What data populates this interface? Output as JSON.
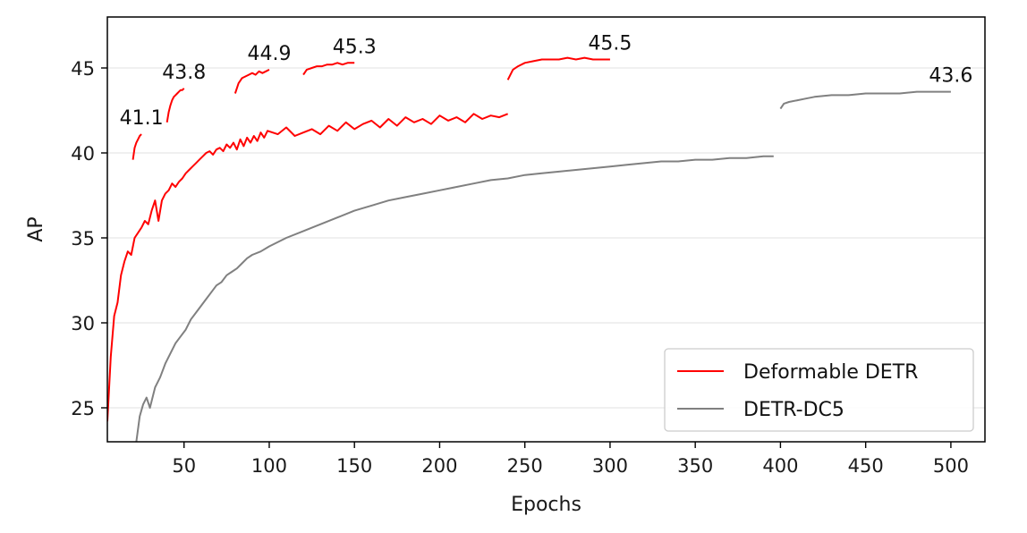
{
  "chart_data": {
    "type": "line",
    "xlabel": "Epochs",
    "ylabel": "AP",
    "xlim": [
      5,
      520
    ],
    "ylim": [
      23,
      48
    ],
    "xticks": [
      50,
      100,
      150,
      200,
      250,
      300,
      350,
      400,
      450,
      500
    ],
    "yticks": [
      25,
      30,
      35,
      40,
      45
    ],
    "grid": "horizontal",
    "legend_position": "bottom-right",
    "colors": {
      "Deformable DETR": "#ff0000",
      "DETR-DC5": "#808080"
    },
    "series": [
      {
        "name": "Deformable DETR",
        "segments": [
          {
            "x": [
              5,
              7,
              9,
              11,
              13,
              15,
              17,
              19,
              21,
              23,
              25,
              27,
              29,
              31,
              33,
              35,
              37,
              39,
              41,
              43,
              45,
              47,
              49,
              51,
              53,
              55,
              57,
              59,
              61,
              63,
              65,
              67,
              69,
              71,
              73,
              75,
              77,
              79,
              81,
              83,
              85,
              87,
              89,
              91,
              93,
              95,
              97,
              99,
              105,
              110,
              115,
              120,
              125,
              130,
              135,
              140,
              145,
              150,
              155,
              160,
              165,
              170,
              175,
              180,
              185,
              190,
              195,
              200,
              205,
              210,
              215,
              220,
              225,
              230,
              235,
              240
            ],
            "y": [
              24.2,
              28.0,
              30.4,
              31.2,
              32.8,
              33.6,
              34.2,
              34.0,
              35.0,
              35.3,
              35.6,
              36.0,
              35.8,
              36.6,
              37.2,
              36.0,
              37.2,
              37.6,
              37.8,
              38.2,
              38.0,
              38.3,
              38.5,
              38.8,
              39.0,
              39.2,
              39.4,
              39.6,
              39.8,
              40.0,
              40.1,
              39.9,
              40.2,
              40.3,
              40.1,
              40.5,
              40.3,
              40.6,
              40.2,
              40.8,
              40.4,
              40.9,
              40.6,
              41.0,
              40.7,
              41.2,
              40.9,
              41.3,
              41.1,
              41.5,
              41.0,
              41.2,
              41.4,
              41.1,
              41.6,
              41.3,
              41.8,
              41.4,
              41.7,
              41.9,
              41.5,
              42.0,
              41.6,
              42.1,
              41.8,
              42.0,
              41.7,
              42.2,
              41.9,
              42.1,
              41.8,
              42.3,
              42.0,
              42.2,
              42.1,
              42.3
            ]
          },
          {
            "x": [
              20,
              21,
              22,
              23,
              24,
              25
            ],
            "y": [
              39.6,
              40.3,
              40.6,
              40.8,
              41.0,
              41.1
            ]
          },
          {
            "x": [
              40,
              41,
              42,
              43,
              44,
              45,
              46,
              47,
              48,
              49,
              50
            ],
            "y": [
              41.8,
              42.4,
              42.8,
              43.1,
              43.3,
              43.4,
              43.5,
              43.6,
              43.7,
              43.7,
              43.8
            ]
          },
          {
            "x": [
              80,
              82,
              84,
              86,
              88,
              90,
              92,
              94,
              96,
              98,
              100
            ],
            "y": [
              43.5,
              44.1,
              44.4,
              44.5,
              44.6,
              44.7,
              44.6,
              44.8,
              44.7,
              44.8,
              44.9
            ]
          },
          {
            "x": [
              120,
              122,
              125,
              128,
              131,
              134,
              137,
              140,
              143,
              146,
              150
            ],
            "y": [
              44.6,
              44.9,
              45.0,
              45.1,
              45.1,
              45.2,
              45.2,
              45.3,
              45.2,
              45.3,
              45.3
            ]
          },
          {
            "x": [
              240,
              243,
              246,
              250,
              255,
              260,
              265,
              270,
              275,
              280,
              285,
              290,
              295,
              300
            ],
            "y": [
              44.3,
              44.9,
              45.1,
              45.3,
              45.4,
              45.5,
              45.5,
              45.5,
              45.6,
              45.5,
              45.6,
              45.5,
              45.5,
              45.5
            ]
          }
        ]
      },
      {
        "name": "DETR-DC5",
        "segments": [
          {
            "x": [
              22,
              24,
              26,
              28,
              30,
              33,
              36,
              39,
              42,
              45,
              48,
              51,
              54,
              57,
              60,
              63,
              66,
              69,
              72,
              75,
              78,
              81,
              84,
              87,
              90,
              95,
              100,
              110,
              120,
              130,
              140,
              150,
              160,
              170,
              180,
              190,
              200,
              210,
              220,
              230,
              240,
              250,
              260,
              270,
              280,
              290,
              300,
              310,
              320,
              330,
              340,
              350,
              360,
              370,
              380,
              390,
              396
            ],
            "y": [
              23.0,
              24.5,
              25.2,
              25.6,
              25.0,
              26.2,
              26.8,
              27.6,
              28.2,
              28.8,
              29.2,
              29.6,
              30.2,
              30.6,
              31.0,
              31.4,
              31.8,
              32.2,
              32.4,
              32.8,
              33.0,
              33.2,
              33.5,
              33.8,
              34.0,
              34.2,
              34.5,
              35.0,
              35.4,
              35.8,
              36.2,
              36.6,
              36.9,
              37.2,
              37.4,
              37.6,
              37.8,
              38.0,
              38.2,
              38.4,
              38.5,
              38.7,
              38.8,
              38.9,
              39.0,
              39.1,
              39.2,
              39.3,
              39.4,
              39.5,
              39.5,
              39.6,
              39.6,
              39.7,
              39.7,
              39.8,
              39.8
            ]
          },
          {
            "x": [
              400,
              402,
              405,
              410,
              415,
              420,
              430,
              440,
              450,
              460,
              470,
              480,
              490,
              500
            ],
            "y": [
              42.6,
              42.9,
              43.0,
              43.1,
              43.2,
              43.3,
              43.4,
              43.4,
              43.5,
              43.5,
              43.5,
              43.6,
              43.6,
              43.6
            ]
          }
        ]
      }
    ],
    "annotations": [
      {
        "text": "41.1",
        "x": 25,
        "y": 41.1
      },
      {
        "text": "43.8",
        "x": 50,
        "y": 43.8
      },
      {
        "text": "44.9",
        "x": 100,
        "y": 44.9
      },
      {
        "text": "45.3",
        "x": 150,
        "y": 45.3
      },
      {
        "text": "45.5",
        "x": 300,
        "y": 45.5
      },
      {
        "text": "43.6",
        "x": 500,
        "y": 43.6
      }
    ]
  }
}
